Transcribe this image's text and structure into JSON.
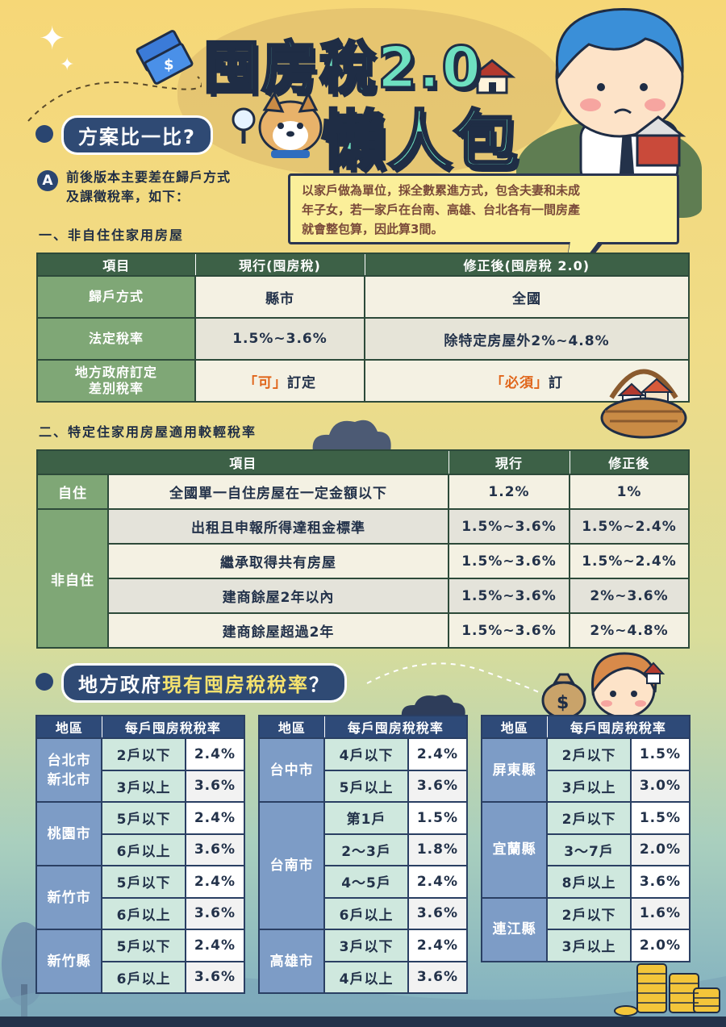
{
  "title": {
    "line1": "囤房稅2.0",
    "line2": "懶人包"
  },
  "section1": {
    "label": "方案比一比?"
  },
  "intro": {
    "badge": "A",
    "line1": "前後版本主要差在歸戶方式",
    "line2": "及課徵稅率，如下："
  },
  "bubble": {
    "text1": "以家戶做為單位，採全數累進方式，包含夫妻和未成",
    "text2": "年子女，若一家戶在台南、高雄、台北各有一間房產",
    "text3": "就會整包算，因此算3間。"
  },
  "part1": {
    "heading": "一、非自住住家用房屋",
    "headers": [
      "項目",
      "現行(囤房稅)",
      "修正後(囤房稅 2.0)"
    ],
    "rows": [
      {
        "label": "歸戶方式",
        "current": "縣市",
        "revised": "全國"
      },
      {
        "label": "法定稅率",
        "current": "1.5%~3.6%",
        "revised": "除特定房屋外2%~4.8%"
      },
      {
        "label1": "地方政府訂定",
        "label2": "差別稅率",
        "current_hl": "「可」",
        "current_rest": "訂定",
        "revised_hl": "「必須」",
        "revised_rest": "訂"
      }
    ]
  },
  "part2": {
    "heading": "二、特定住家用房屋適用較輕稅率",
    "headers": [
      "項目",
      "現行",
      "修正後"
    ],
    "self": {
      "label": "自住",
      "item": "全國單一自住房屋在一定金額以下",
      "current": "1.2%",
      "revised": "1%"
    },
    "nonself": {
      "label": "非自住",
      "rows": [
        {
          "item": "出租且申報所得達租金標準",
          "current": "1.5%~3.6%",
          "revised": "1.5%~2.4%"
        },
        {
          "item": "繼承取得共有房屋",
          "current": "1.5%~3.6%",
          "revised": "1.5%~2.4%"
        },
        {
          "item": "建商餘屋2年以內",
          "current": "1.5%~3.6%",
          "revised": "2%~3.6%"
        },
        {
          "item": "建商餘屋超過2年",
          "current": "1.5%~3.6%",
          "revised": "2%~4.8%"
        }
      ]
    }
  },
  "section2": {
    "label_a": "地方政府",
    "label_hl": "現有囤房稅稅率",
    "label_b": "？"
  },
  "rates": {
    "headers": [
      "地區",
      "每戶囤房稅稅率"
    ],
    "table1": [
      {
        "region1": "台北市",
        "region2": "新北市",
        "tiers": [
          {
            "tier": "2戶以下",
            "rate": "2.4%"
          },
          {
            "tier": "3戶以上",
            "rate": "3.6%"
          }
        ]
      },
      {
        "region1": "桃園市",
        "tiers": [
          {
            "tier": "5戶以下",
            "rate": "2.4%"
          },
          {
            "tier": "6戶以上",
            "rate": "3.6%"
          }
        ]
      },
      {
        "region1": "新竹市",
        "tiers": [
          {
            "tier": "5戶以下",
            "rate": "2.4%"
          },
          {
            "tier": "6戶以上",
            "rate": "3.6%"
          }
        ]
      },
      {
        "region1": "新竹縣",
        "tiers": [
          {
            "tier": "5戶以下",
            "rate": "2.4%"
          },
          {
            "tier": "6戶以上",
            "rate": "3.6%"
          }
        ]
      }
    ],
    "table2": [
      {
        "region1": "台中市",
        "tiers": [
          {
            "tier": "4戶以下",
            "rate": "2.4%"
          },
          {
            "tier": "5戶以上",
            "rate": "3.6%"
          }
        ]
      },
      {
        "region1": "台南市",
        "tiers": [
          {
            "tier": "第1戶",
            "rate": "1.5%"
          },
          {
            "tier": "2～3戶",
            "rate": "1.8%"
          },
          {
            "tier": "4～5戶",
            "rate": "2.4%"
          },
          {
            "tier": "6戶以上",
            "rate": "3.6%"
          }
        ]
      },
      {
        "region1": "高雄市",
        "tiers": [
          {
            "tier": "3戶以下",
            "rate": "2.4%"
          },
          {
            "tier": "4戶以上",
            "rate": "3.6%"
          }
        ]
      }
    ],
    "table3": [
      {
        "region1": "屏東縣",
        "tiers": [
          {
            "tier": "2戶以下",
            "rate": "1.5%"
          },
          {
            "tier": "3戶以上",
            "rate": "3.0%"
          }
        ]
      },
      {
        "region1": "宜蘭縣",
        "tiers": [
          {
            "tier": "2戶以下",
            "rate": "1.5%"
          },
          {
            "tier": "3～7戶",
            "rate": "2.0%"
          },
          {
            "tier": "8戶以上",
            "rate": "3.6%"
          }
        ]
      },
      {
        "region1": "連江縣",
        "tiers": [
          {
            "tier": "2戶以下",
            "rate": "1.6%"
          },
          {
            "tier": "3戶以上",
            "rate": "2.0%"
          }
        ]
      }
    ]
  },
  "colors": {
    "navy": "#2e4a78",
    "green_header": "#3d6147",
    "green_label": "#7fa776",
    "accent_orange": "#e0651a",
    "title_mint": "#6ee0c0"
  },
  "icons": [
    "sparkle-icon",
    "money-icon",
    "dog-mascot-icon",
    "magnifier-icon",
    "boy-character-icon",
    "house-icon",
    "basket-houses-icon",
    "cloud-icon",
    "girl-character-icon",
    "money-bag-icon",
    "coin-stack-icon",
    "tree-icon"
  ]
}
